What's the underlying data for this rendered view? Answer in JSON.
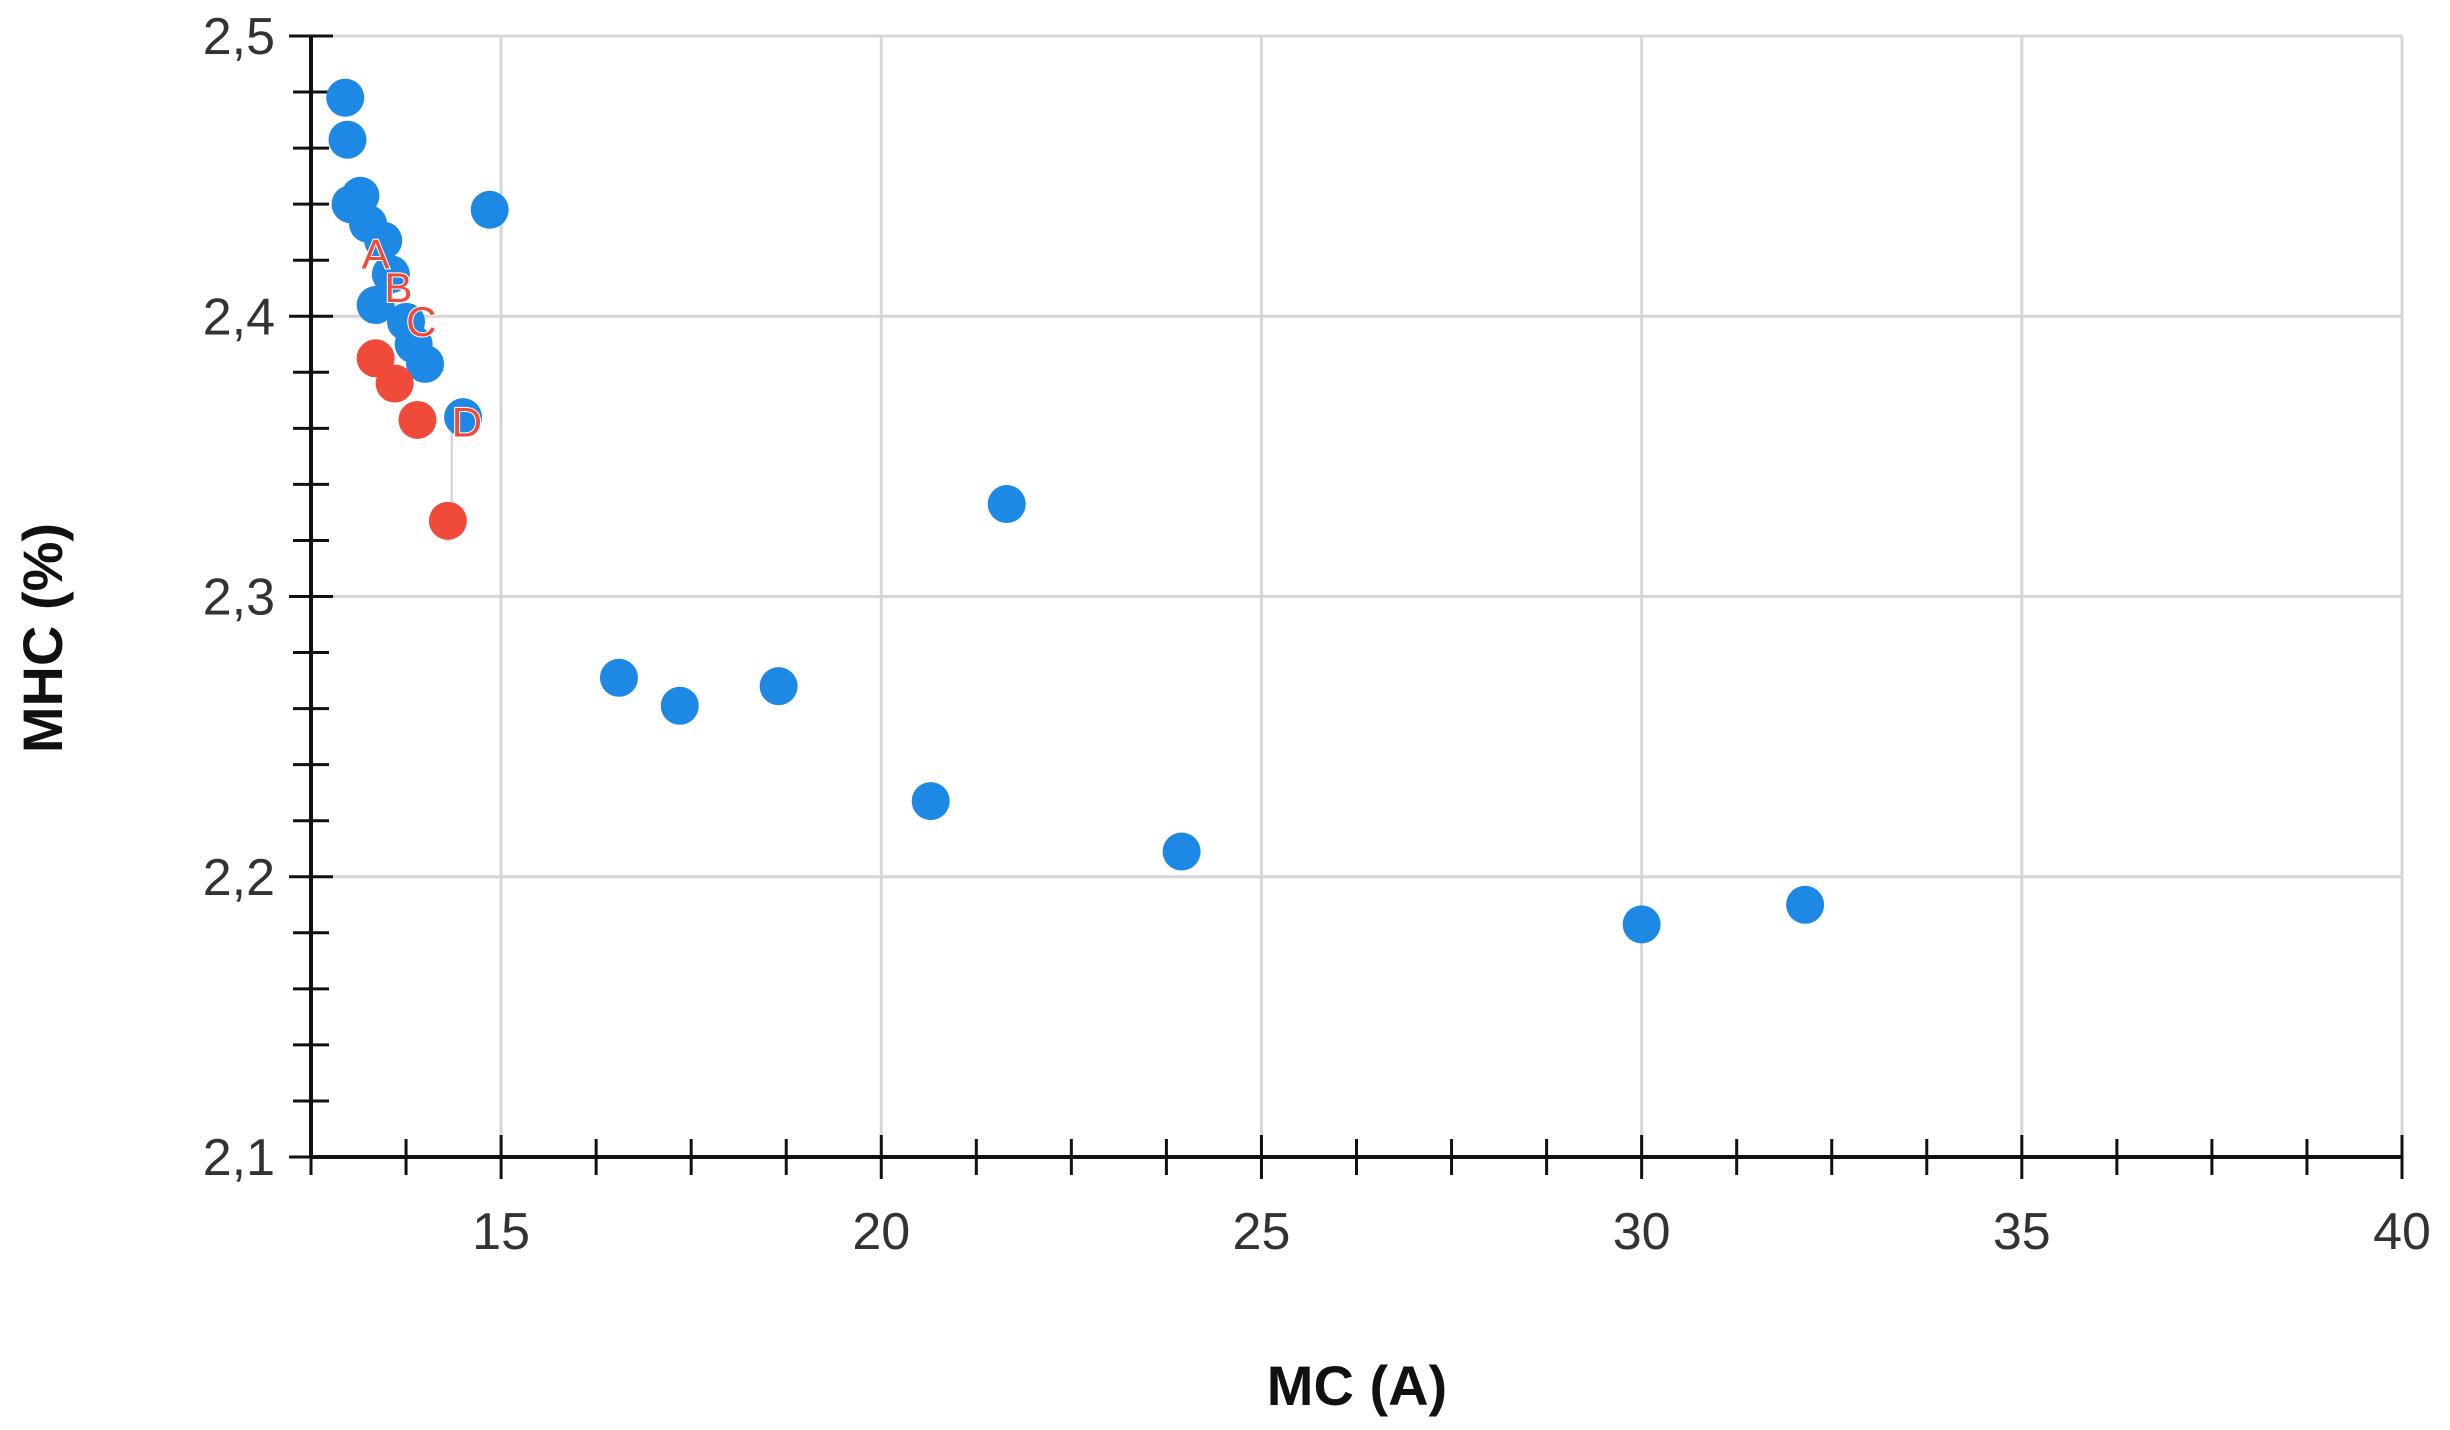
{
  "chart_data": {
    "type": "scatter",
    "title": "",
    "xlabel": "MC (A)",
    "ylabel": "MHC (%)",
    "xlim": [
      12.5,
      40
    ],
    "ylim": [
      2.1,
      2.5
    ],
    "x_ticks": [
      15,
      20,
      25,
      30,
      35,
      40
    ],
    "x_tick_labels": [
      "15",
      "20",
      "25",
      "30",
      "35",
      "40"
    ],
    "y_ticks": [
      2.1,
      2.2,
      2.3,
      2.4,
      2.5
    ],
    "y_tick_labels": [
      "2,1",
      "2,2",
      "2,3",
      "2,4",
      "2,5"
    ],
    "grid": true,
    "legend": "none",
    "series": [
      {
        "color": "#1e88e5",
        "points": [
          [
            12.95,
            2.478
          ],
          [
            12.98,
            2.463
          ],
          [
            13.02,
            2.44
          ],
          [
            13.15,
            2.443
          ],
          [
            13.25,
            2.433
          ],
          [
            13.45,
            2.427
          ],
          [
            13.55,
            2.415
          ],
          [
            13.35,
            2.404
          ],
          [
            13.75,
            2.398
          ],
          [
            13.85,
            2.39
          ],
          [
            14.0,
            2.383
          ],
          [
            14.5,
            2.364
          ],
          [
            14.85,
            2.438
          ],
          [
            16.55,
            2.271
          ],
          [
            17.35,
            2.261
          ],
          [
            18.65,
            2.268
          ],
          [
            20.65,
            2.227
          ],
          [
            21.65,
            2.333
          ],
          [
            23.95,
            2.209
          ],
          [
            30.0,
            2.183
          ],
          [
            32.15,
            2.19
          ]
        ]
      },
      {
        "color": "#f04a3a",
        "points": [
          [
            13.35,
            2.385
          ],
          [
            13.6,
            2.376
          ],
          [
            13.9,
            2.363
          ],
          [
            14.3,
            2.327
          ]
        ]
      }
    ],
    "annotations": [
      {
        "text": "A",
        "x": 13.35,
        "y": 2.422
      },
      {
        "text": "B",
        "x": 13.65,
        "y": 2.41
      },
      {
        "text": "C",
        "x": 13.95,
        "y": 2.398
      },
      {
        "text": "D",
        "x": 14.55,
        "y": 2.362
      }
    ]
  }
}
